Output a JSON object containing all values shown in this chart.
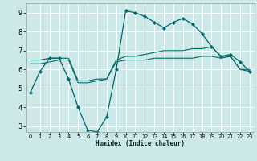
{
  "title": "",
  "xlabel": "Humidex (Indice chaleur)",
  "bg_color": "#cce8e8",
  "grid_color": "#ffffff",
  "line_color": "#006868",
  "xlim": [
    -0.5,
    23.5
  ],
  "ylim": [
    2.7,
    9.5
  ],
  "yticks": [
    3,
    4,
    5,
    6,
    7,
    8,
    9
  ],
  "xticks": [
    0,
    1,
    2,
    3,
    4,
    5,
    6,
    7,
    8,
    9,
    10,
    11,
    12,
    13,
    14,
    15,
    16,
    17,
    18,
    19,
    20,
    21,
    22,
    23
  ],
  "series1_x": [
    0,
    1,
    2,
    3,
    4,
    5,
    6,
    7,
    8,
    9,
    10,
    11,
    12,
    13,
    14,
    15,
    16,
    17,
    18,
    19,
    20,
    21,
    22,
    23
  ],
  "series1_y": [
    4.8,
    5.9,
    6.6,
    6.6,
    5.5,
    4.0,
    2.8,
    2.7,
    3.5,
    6.0,
    9.1,
    9.0,
    8.8,
    8.5,
    8.2,
    8.5,
    8.7,
    8.4,
    7.9,
    7.2,
    6.7,
    6.8,
    6.4,
    5.9
  ],
  "series2_x": [
    0,
    1,
    2,
    3,
    4,
    5,
    6,
    7,
    8,
    9,
    10,
    11,
    12,
    13,
    14,
    15,
    16,
    17,
    18,
    19,
    20,
    21,
    22,
    23
  ],
  "series2_y": [
    6.5,
    6.5,
    6.6,
    6.6,
    6.6,
    5.4,
    5.4,
    5.5,
    5.5,
    6.5,
    6.7,
    6.7,
    6.8,
    6.9,
    7.0,
    7.0,
    7.0,
    7.1,
    7.1,
    7.2,
    6.7,
    6.7,
    6.0,
    6.0
  ],
  "series3_x": [
    0,
    1,
    2,
    3,
    4,
    5,
    6,
    7,
    8,
    9,
    10,
    11,
    12,
    13,
    14,
    15,
    16,
    17,
    18,
    19,
    20,
    21,
    22,
    23
  ],
  "series3_y": [
    6.3,
    6.3,
    6.4,
    6.5,
    6.5,
    5.3,
    5.3,
    5.4,
    5.5,
    6.4,
    6.5,
    6.5,
    6.5,
    6.6,
    6.6,
    6.6,
    6.6,
    6.6,
    6.7,
    6.7,
    6.6,
    6.7,
    6.0,
    5.9
  ],
  "xlabel_fontsize": 5.5,
  "ytick_fontsize": 6,
  "xtick_fontsize": 4.8
}
